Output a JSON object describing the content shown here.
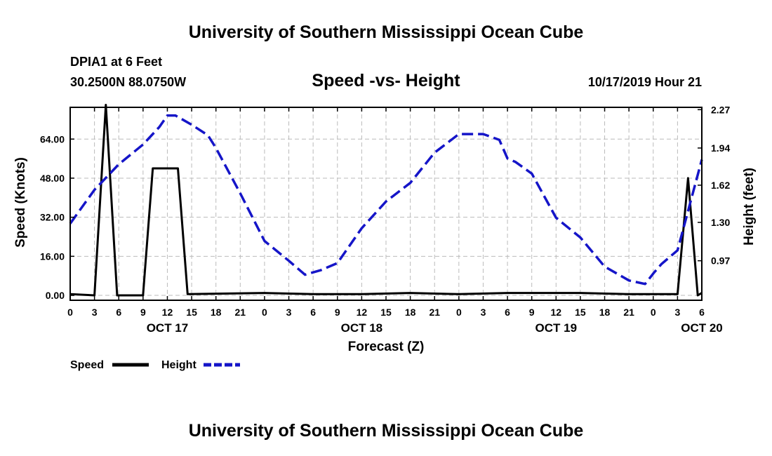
{
  "page": {
    "top_title": "University of Southern Mississippi Ocean Cube",
    "bottom_title": "University of Southern Mississippi Ocean Cube",
    "station": "DPIA1 at 6 Feet",
    "coords": "30.2500N 88.0750W",
    "datetime": "10/17/2019 Hour 21"
  },
  "colors": {
    "speed": "#000000",
    "height": "#1515c8",
    "grid": "#bbbbbb"
  },
  "chart_data": {
    "type": "line",
    "title": "Speed -vs- Height",
    "xlabel": "Forecast (Z)",
    "ylabel": "Speed (Knots)",
    "y2label": "Height (feet)",
    "xlim": [
      0,
      78
    ],
    "ylim": [
      -2,
      77
    ],
    "y2lim": [
      0.63,
      2.29
    ],
    "x_tick_labels": [
      "0",
      "3",
      "6",
      "9",
      "12",
      "15",
      "18",
      "21",
      "0",
      "3",
      "6",
      "9",
      "12",
      "15",
      "18",
      "21",
      "0",
      "3",
      "6",
      "9",
      "12",
      "15",
      "18",
      "21",
      "0",
      "3",
      "6"
    ],
    "date_labels": [
      {
        "x": 12,
        "label": "OCT 17"
      },
      {
        "x": 36,
        "label": "OCT 18"
      },
      {
        "x": 60,
        "label": "OCT 19"
      },
      {
        "x": 78,
        "label": "OCT 20"
      }
    ],
    "yticks": [
      0,
      16,
      32,
      48,
      64
    ],
    "ytick_labels": [
      "0.00",
      "16.00",
      "32.00",
      "48.00",
      "64.00"
    ],
    "y2ticks": [
      0.97,
      1.3,
      1.62,
      1.94,
      2.27
    ],
    "y2tick_labels": [
      "0.97",
      "1.30",
      "1.62",
      "1.94",
      "2.27"
    ],
    "grid": true,
    "legend_position": "bottom-left",
    "series": [
      {
        "name": "Speed",
        "axis": "left",
        "style": "solid",
        "x": [
          0,
          3,
          4.4,
          5.8,
          9,
          10.2,
          13.3,
          14.5,
          24,
          30,
          36,
          42,
          48,
          54,
          58,
          63,
          69,
          72,
          75,
          76.3,
          77.5,
          78
        ],
        "y": [
          0.5,
          0,
          78,
          0,
          0,
          52,
          52,
          0.5,
          1,
          0.5,
          0.5,
          1,
          0.5,
          1,
          1,
          1,
          0.5,
          0.5,
          0.5,
          48,
          0,
          1
        ]
      },
      {
        "name": "Height",
        "axis": "right",
        "style": "dashed",
        "x": [
          0,
          3,
          6,
          9,
          11,
          12,
          13,
          15,
          17,
          18,
          21,
          24,
          27,
          29,
          31,
          33,
          36,
          39,
          42,
          45,
          48,
          51,
          53,
          54,
          55,
          57,
          60,
          63,
          66,
          69,
          71,
          72,
          73,
          75,
          78
        ],
        "y": [
          1.29,
          1.58,
          1.8,
          1.97,
          2.12,
          2.22,
          2.22,
          2.14,
          2.05,
          1.94,
          1.55,
          1.14,
          0.97,
          0.85,
          0.89,
          0.95,
          1.25,
          1.48,
          1.64,
          1.9,
          2.06,
          2.06,
          2.01,
          1.85,
          1.82,
          1.72,
          1.34,
          1.17,
          0.92,
          0.8,
          0.77,
          0.86,
          0.94,
          1.06,
          1.84
        ]
      }
    ]
  }
}
